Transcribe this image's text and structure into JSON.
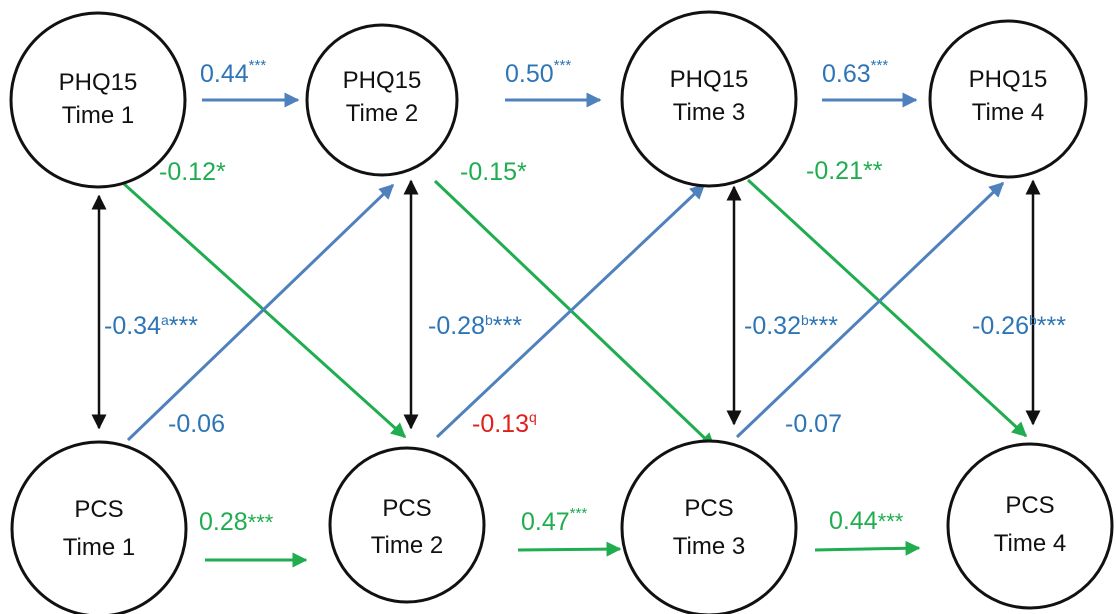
{
  "colors": {
    "blue": "#4f81bd",
    "blue_text": "#2e75b6",
    "green": "#1fad4f",
    "red": "#e0201b",
    "black": "#111111"
  },
  "nodes": {
    "phq_t1": [
      "PHQ15",
      "Time 1"
    ],
    "phq_t2": [
      "PHQ15",
      "Time 2"
    ],
    "phq_t3": [
      "PHQ15",
      "Time 3"
    ],
    "phq_t4": [
      "PHQ15",
      "Time 4"
    ],
    "pcs_t1": [
      "PCS",
      "Time 1"
    ],
    "pcs_t2": [
      "PCS",
      "Time 2"
    ],
    "pcs_t3": [
      "PCS",
      "Time 3"
    ],
    "pcs_t4": [
      "PCS",
      "Time 4"
    ]
  },
  "paths": {
    "phq_t1_t2": {
      "value": "0.44",
      "sig": "***"
    },
    "phq_t2_t3": {
      "value": "0.50",
      "sig": "***"
    },
    "phq_t3_t4": {
      "value": "0.63",
      "sig": "***"
    },
    "pcs_t1_t2": {
      "value": "0.28",
      "sig": "***"
    },
    "pcs_t2_t3": {
      "value": "0.47",
      "sig": "***"
    },
    "pcs_t3_t4": {
      "value": "0.44",
      "sig": "***"
    },
    "phq_t1_pcs_t2": {
      "value": "-0.12",
      "sig": "*"
    },
    "phq_t2_pcs_t3": {
      "value": "-0.15",
      "sig": "*"
    },
    "phq_t3_pcs_t4": {
      "value": "-0.21",
      "sig": "**"
    },
    "pcs_t1_phq_t2": {
      "value": "-0.06"
    },
    "pcs_t2_phq_t3": {
      "value": "-0.13",
      "sup": "q"
    },
    "pcs_t3_phq_t4": {
      "value": "-0.07"
    }
  },
  "correlations": {
    "t1": {
      "value": "-0.34",
      "sup": "a",
      "sig": "***"
    },
    "t2": {
      "value": "-0.28",
      "sup": "b",
      "sig": "***"
    },
    "t3": {
      "value": "-0.32",
      "sup": "b",
      "sig": "***"
    },
    "t4": {
      "value": "-0.26",
      "sup": "b",
      "sig": "***"
    }
  }
}
